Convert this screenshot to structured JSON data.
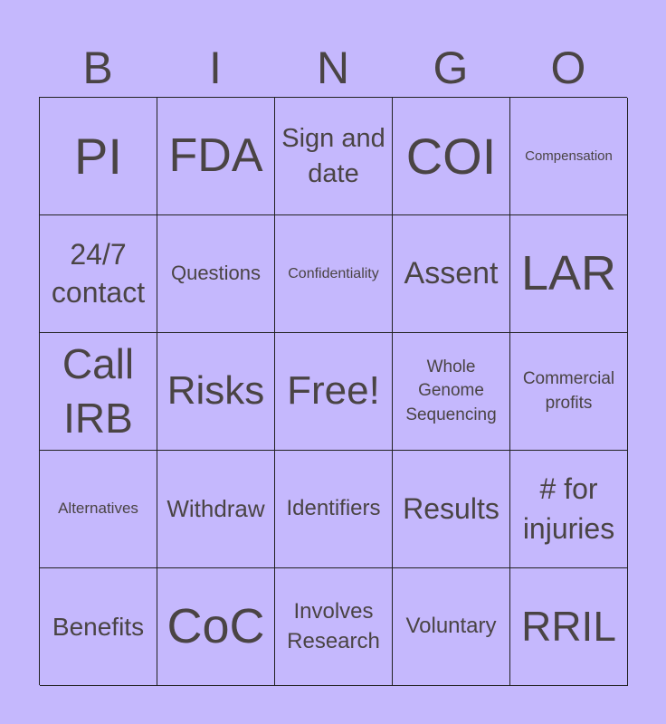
{
  "header": [
    "B",
    "I",
    "N",
    "G",
    "O"
  ],
  "colors": {
    "background": "#c5b8fd",
    "text": "#4a4444",
    "grid": "#222222"
  },
  "cells": [
    "PI",
    "FDA",
    "Sign and date",
    "COI",
    "Compensation",
    "24/7 contact",
    "Questions",
    "Confidentiality",
    "Assent",
    "LAR",
    "Call IRB",
    "Risks",
    "Free!",
    "Whole Genome Sequencing",
    "Commercial profits",
    "Alternatives",
    "Withdraw",
    "Identifiers",
    "Results",
    "# for injuries",
    "Benefits",
    "CoC",
    "Involves Research",
    "Voluntary",
    "RRIL"
  ]
}
